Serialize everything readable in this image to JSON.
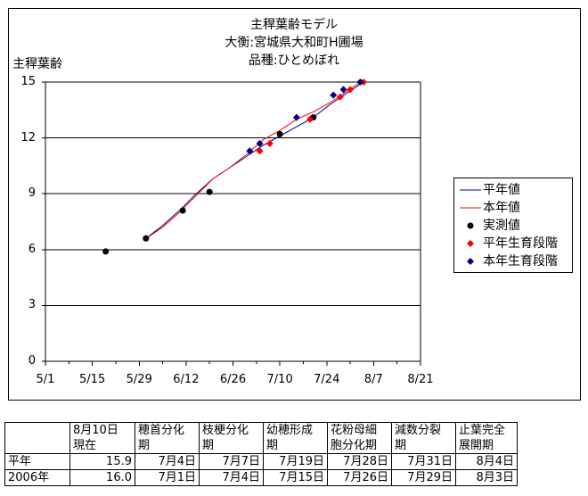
{
  "title_lines": [
    "主稈葉齢モデル",
    "大衡:宮城県大和町H圃場",
    "品種:ひとめぼれ"
  ],
  "chart_data": {
    "type": "line",
    "title": "主稈葉齢モデル",
    "subtitle": [
      "大衡:宮城県大和町H圃場",
      "品種:ひとめぼれ"
    ],
    "ylabel": "主稈葉齢",
    "xlabel": "",
    "ylim": [
      0,
      15
    ],
    "yticks": [
      0,
      3,
      6,
      9,
      12,
      15
    ],
    "x_tick_labels": [
      "5/1",
      "5/15",
      "5/29",
      "6/12",
      "6/26",
      "7/10",
      "7/24",
      "8/7",
      "8/21"
    ],
    "x_tick_dates": [
      "2006-05-01",
      "2006-05-15",
      "2006-05-29",
      "2006-06-12",
      "2006-06-26",
      "2006-07-10",
      "2006-07-24",
      "2006-08-07",
      "2006-08-21"
    ],
    "xlim": [
      "2006-05-01",
      "2006-08-21"
    ],
    "grid": "horizontal",
    "legend_position": "right",
    "series": [
      {
        "name": "平年値",
        "style": "line",
        "color": "#000080",
        "x": [
          "2006-05-31",
          "2006-06-05",
          "2006-06-10",
          "2006-06-15",
          "2006-06-20",
          "2006-06-25",
          "2006-06-30",
          "2006-07-05",
          "2006-07-10",
          "2006-07-15",
          "2006-07-20",
          "2006-07-25",
          "2006-07-30",
          "2006-08-04"
        ],
        "y": [
          6.6,
          7.3,
          8.1,
          9.0,
          9.8,
          10.4,
          11.0,
          11.6,
          12.1,
          12.6,
          13.1,
          13.8,
          14.4,
          15.0
        ]
      },
      {
        "name": "本年値",
        "style": "line",
        "color": "#ff0000",
        "x": [
          "2006-05-31",
          "2006-06-05",
          "2006-06-10",
          "2006-06-15",
          "2006-06-20",
          "2006-06-25",
          "2006-06-30",
          "2006-07-05",
          "2006-07-10",
          "2006-07-15",
          "2006-07-20",
          "2006-07-25",
          "2006-07-30",
          "2006-08-04"
        ],
        "y": [
          6.6,
          7.2,
          8.0,
          8.9,
          9.8,
          10.4,
          11.1,
          11.9,
          12.4,
          13.0,
          13.4,
          13.9,
          14.5,
          15.1
        ]
      },
      {
        "name": "実測値",
        "style": "circle",
        "color": "#000000",
        "x": [
          "2006-05-19",
          "2006-05-31",
          "2006-06-11",
          "2006-06-19",
          "2006-07-10",
          "2006-07-20"
        ],
        "y": [
          5.9,
          6.6,
          8.1,
          9.1,
          12.2,
          13.1
        ]
      },
      {
        "name": "平年生育段階",
        "style": "diamond",
        "color": "#ff0000",
        "x": [
          "2006-07-04",
          "2006-07-07",
          "2006-07-19",
          "2006-07-28",
          "2006-07-31",
          "2006-08-04"
        ],
        "y": [
          11.3,
          11.7,
          13.0,
          14.2,
          14.6,
          15.0
        ]
      },
      {
        "name": "本年生育段階",
        "style": "diamond",
        "color": "#000080",
        "x": [
          "2006-07-01",
          "2006-07-04",
          "2006-07-15",
          "2006-07-26",
          "2006-07-29",
          "2006-08-03"
        ],
        "y": [
          11.3,
          11.7,
          13.1,
          14.3,
          14.6,
          15.0
        ]
      }
    ]
  },
  "legend": [
    "平年値",
    "本年値",
    "実測値",
    "平年生育段階",
    "本年生育段階"
  ],
  "table": {
    "header": [
      [
        "",
        ""
      ],
      [
        "8月10日",
        "現在"
      ],
      [
        "穂首分化",
        "期"
      ],
      [
        "枝梗分化",
        "期"
      ],
      [
        "幼穂形成",
        "期"
      ],
      [
        "花粉母細",
        "胞分化期"
      ],
      [
        "減数分裂",
        "期"
      ],
      [
        "止葉完全",
        "展開期"
      ]
    ],
    "rows": [
      [
        "平年",
        "15.9",
        "7月4日",
        "7月7日",
        "7月19日",
        "7月28日",
        "7月31日",
        "8月4日"
      ],
      [
        "2006年",
        "16.0",
        "7月1日",
        "7月4日",
        "7月15日",
        "7月26日",
        "7月29日",
        "8月3日"
      ]
    ]
  }
}
